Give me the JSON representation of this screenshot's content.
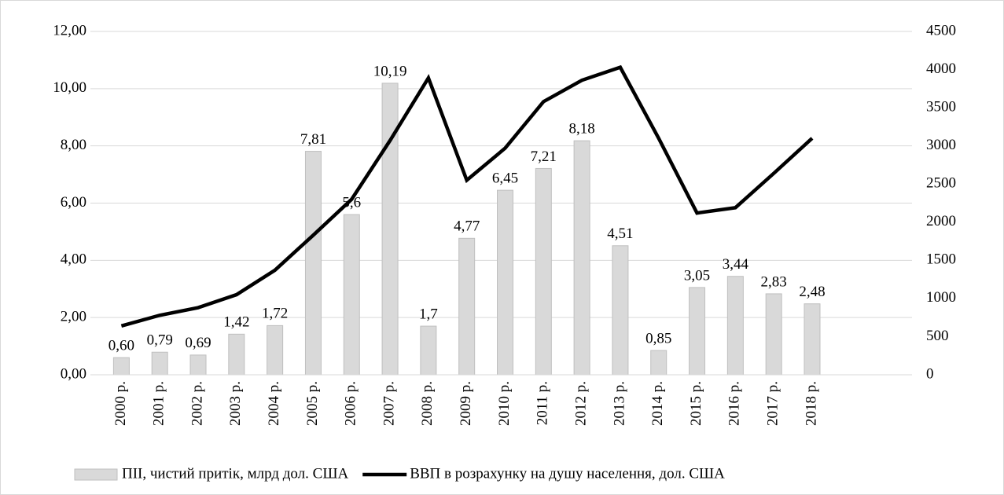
{
  "chart_data": {
    "type": "bar_line",
    "categories": [
      "2000 р.",
      "2001 р.",
      "2002 р.",
      "2003 р.",
      "2004 р.",
      "2005 р.",
      "2006 р.",
      "2007 р.",
      "2008 р.",
      "2009 р.",
      "2010 р.",
      "2011 р.",
      "2012 р.",
      "2013 р.",
      "2014 р.",
      "2015 р.",
      "2016 р.",
      "2017 р.",
      "2018 р.",
      null,
      null
    ],
    "series": [
      {
        "name": "ПІІ, чистий притік, млрд  дол. США",
        "type": "bar",
        "color": "#d9d9d9",
        "values": [
          0.6,
          0.79,
          0.69,
          1.42,
          1.72,
          7.81,
          5.6,
          10.19,
          1.7,
          4.77,
          6.45,
          7.21,
          8.18,
          4.51,
          0.85,
          3.05,
          3.44,
          2.83,
          2.48,
          null,
          null
        ],
        "value_labels": [
          "0,60",
          "0,79",
          "0,69",
          "1,42",
          "1,72",
          "7,81",
          "5,6",
          "10,19",
          "1,7",
          "4,77",
          "6,45",
          "7,21",
          "8,18",
          "4,51",
          "0,85",
          "3,05",
          "3,44",
          "2,83",
          "2,48",
          null,
          null
        ]
      },
      {
        "name": "ВВП в розрахунку на душу населення, дол. США",
        "type": "line",
        "axis": "y2",
        "color": "#000000",
        "values": [
          640,
          780,
          880,
          1050,
          1370,
          1830,
          2300,
          3070,
          3890,
          2550,
          2970,
          3580,
          3860,
          4030,
          3100,
          2120,
          2190,
          2640,
          3100,
          null,
          null
        ]
      }
    ],
    "ylim": [
      0,
      12
    ],
    "yticks": [
      {
        "value": 0,
        "label": "0,00"
      },
      {
        "value": 2,
        "label": "2,00"
      },
      {
        "value": 4,
        "label": "4,00"
      },
      {
        "value": 6,
        "label": "6,00"
      },
      {
        "value": 8,
        "label": "8,00"
      },
      {
        "value": 10,
        "label": "10,00"
      },
      {
        "value": 12,
        "label": "12,00"
      }
    ],
    "y2lim": [
      0,
      4500
    ],
    "y2ticks": [
      0,
      500,
      1000,
      1500,
      2000,
      2500,
      3000,
      3500,
      4000,
      4500
    ],
    "grid": true,
    "legend": "bottom"
  }
}
